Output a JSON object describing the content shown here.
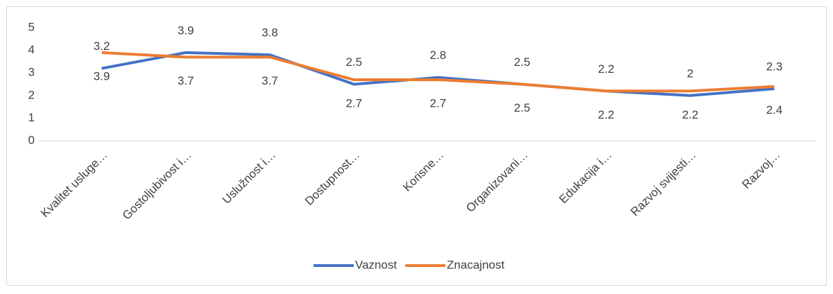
{
  "chart_data": {
    "type": "line",
    "categories": [
      "Kvalitet usluge…",
      "Gostoljubivost i…",
      "Uslužnost i…",
      "Dostupnost…",
      "Korisne…",
      "Organizovani…",
      "Edukacija i…",
      "Razvoj svijesti…",
      "Razvoj…"
    ],
    "series": [
      {
        "name": "Vaznost",
        "color": "#4472c4",
        "values": [
          3.2,
          3.9,
          3.8,
          2.5,
          2.8,
          2.5,
          2.2,
          2,
          2.3
        ]
      },
      {
        "name": "Znacajnost",
        "color": "#ed7d31",
        "values": [
          3.9,
          3.7,
          3.7,
          2.7,
          2.7,
          2.5,
          2.2,
          2.2,
          2.4
        ]
      }
    ],
    "ylim": [
      0,
      5
    ],
    "yticks": [
      0,
      1,
      2,
      3,
      4,
      5
    ],
    "legend": "bottom"
  }
}
